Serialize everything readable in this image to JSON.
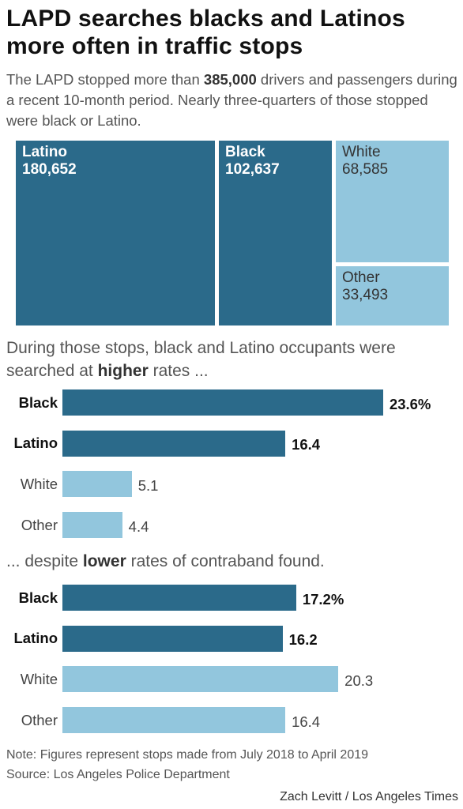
{
  "title": "LAPD searches blacks and Latinos more often in traffic stops",
  "intro": {
    "before": "The LAPD stopped more than ",
    "bold": "385,000",
    "after": " drivers and passengers during a recent 10-month period. Nearly three-quarters of those stopped were black or Latino."
  },
  "colors": {
    "dark": "#2b6a8a",
    "light": "#92c6dd"
  },
  "section2": {
    "before": "During those stops, black and Latino occupants were searched at ",
    "bold": "higher",
    "after": " rates ..."
  },
  "section3": {
    "before": "... despite ",
    "bold": "lower",
    "after": " rates of contraband found."
  },
  "chart_data": [
    {
      "type": "treemap",
      "items": [
        {
          "category": "Latino",
          "value": 180652,
          "label": "180,652",
          "shade": "dark"
        },
        {
          "category": "Black",
          "value": 102637,
          "label": "102,637",
          "shade": "dark"
        },
        {
          "category": "White",
          "value": 68585,
          "label": "68,585",
          "shade": "light"
        },
        {
          "category": "Other",
          "value": 33493,
          "label": "33,493",
          "shade": "light"
        }
      ]
    },
    {
      "type": "bar",
      "orientation": "horizontal",
      "unit": "%",
      "categories": [
        "Black",
        "Latino",
        "White",
        "Other"
      ],
      "values": [
        23.6,
        16.4,
        5.1,
        4.4
      ],
      "value_labels": [
        "23.6%",
        "16.4",
        "5.1",
        "4.4"
      ],
      "shades": [
        "dark",
        "dark",
        "light",
        "light"
      ]
    },
    {
      "type": "bar",
      "orientation": "horizontal",
      "unit": "%",
      "categories": [
        "Black",
        "Latino",
        "White",
        "Other"
      ],
      "values": [
        17.2,
        16.2,
        20.3,
        16.4
      ],
      "value_labels": [
        "17.2%",
        "16.2",
        "20.3",
        "16.4"
      ],
      "shades": [
        "dark",
        "dark",
        "light",
        "light"
      ]
    }
  ],
  "note": "Note: Figures represent stops made from July 2018 to April 2019",
  "source": "Source: Los Angeles Police Department",
  "credit": "Zach Levitt / Los Angeles Times"
}
